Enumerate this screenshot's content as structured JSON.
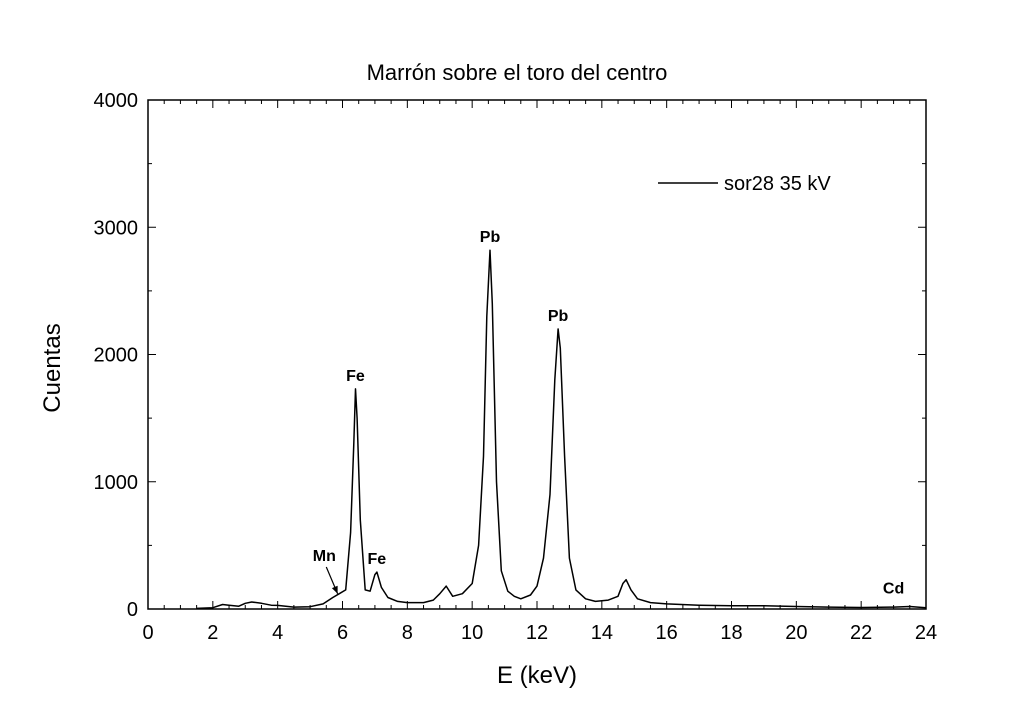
{
  "chart_data": {
    "type": "line",
    "title": "Marrón sobre el toro del centro",
    "xlabel": "E (keV)",
    "ylabel": "Cuentas",
    "xlim": [
      0,
      24
    ],
    "ylim": [
      0,
      4000
    ],
    "x_ticks": [
      0,
      2,
      4,
      6,
      8,
      10,
      12,
      14,
      16,
      18,
      20,
      22,
      24
    ],
    "y_ticks": [
      0,
      1000,
      2000,
      3000,
      4000
    ],
    "grid": false,
    "legend_position": "top-right",
    "series": [
      {
        "name": "sor28 35 kV",
        "color": "#000000",
        "points": [
          [
            1.5,
            5
          ],
          [
            2.0,
            10
          ],
          [
            2.3,
            35
          ],
          [
            2.5,
            30
          ],
          [
            2.8,
            22
          ],
          [
            3.0,
            45
          ],
          [
            3.2,
            55
          ],
          [
            3.5,
            45
          ],
          [
            3.8,
            30
          ],
          [
            4.0,
            28
          ],
          [
            4.5,
            15
          ],
          [
            5.0,
            18
          ],
          [
            5.4,
            40
          ],
          [
            5.7,
            90
          ],
          [
            5.9,
            120
          ],
          [
            6.1,
            150
          ],
          [
            6.25,
            600
          ],
          [
            6.35,
            1300
          ],
          [
            6.4,
            1730
          ],
          [
            6.45,
            1500
          ],
          [
            6.55,
            700
          ],
          [
            6.7,
            150
          ],
          [
            6.85,
            140
          ],
          [
            7.0,
            270
          ],
          [
            7.06,
            290
          ],
          [
            7.2,
            170
          ],
          [
            7.4,
            90
          ],
          [
            7.7,
            60
          ],
          [
            8.0,
            50
          ],
          [
            8.5,
            50
          ],
          [
            8.8,
            70
          ],
          [
            9.0,
            120
          ],
          [
            9.2,
            180
          ],
          [
            9.4,
            100
          ],
          [
            9.7,
            120
          ],
          [
            10.0,
            200
          ],
          [
            10.2,
            500
          ],
          [
            10.35,
            1200
          ],
          [
            10.45,
            2300
          ],
          [
            10.55,
            2820
          ],
          [
            10.62,
            2400
          ],
          [
            10.75,
            1000
          ],
          [
            10.9,
            300
          ],
          [
            11.1,
            140
          ],
          [
            11.3,
            100
          ],
          [
            11.5,
            80
          ],
          [
            11.8,
            110
          ],
          [
            12.0,
            180
          ],
          [
            12.2,
            400
          ],
          [
            12.4,
            900
          ],
          [
            12.55,
            1800
          ],
          [
            12.65,
            2200
          ],
          [
            12.72,
            2050
          ],
          [
            12.85,
            1200
          ],
          [
            13.0,
            400
          ],
          [
            13.2,
            150
          ],
          [
            13.5,
            80
          ],
          [
            13.8,
            60
          ],
          [
            14.2,
            70
          ],
          [
            14.5,
            100
          ],
          [
            14.65,
            200
          ],
          [
            14.75,
            230
          ],
          [
            14.9,
            150
          ],
          [
            15.1,
            80
          ],
          [
            15.5,
            50
          ],
          [
            16.0,
            40
          ],
          [
            17.0,
            30
          ],
          [
            18.0,
            25
          ],
          [
            19.0,
            25
          ],
          [
            20.0,
            20
          ],
          [
            21.0,
            15
          ],
          [
            22.0,
            12
          ],
          [
            23.0,
            15
          ],
          [
            23.5,
            20
          ],
          [
            24.0,
            10
          ]
        ]
      }
    ],
    "annotations": [
      {
        "text": "Mn",
        "x": 5.9,
        "y": 190,
        "arrow_from": [
          5.5,
          330
        ],
        "arrow_to": [
          5.85,
          120
        ]
      },
      {
        "text": "Fe",
        "x": 6.4,
        "y": 1730
      },
      {
        "text": "Fe",
        "x": 7.06,
        "y": 290
      },
      {
        "text": "Pb",
        "x": 10.55,
        "y": 2820
      },
      {
        "text": "Pb",
        "x": 12.65,
        "y": 2200
      },
      {
        "text": "Cd",
        "x": 23.0,
        "y": 60
      }
    ]
  }
}
